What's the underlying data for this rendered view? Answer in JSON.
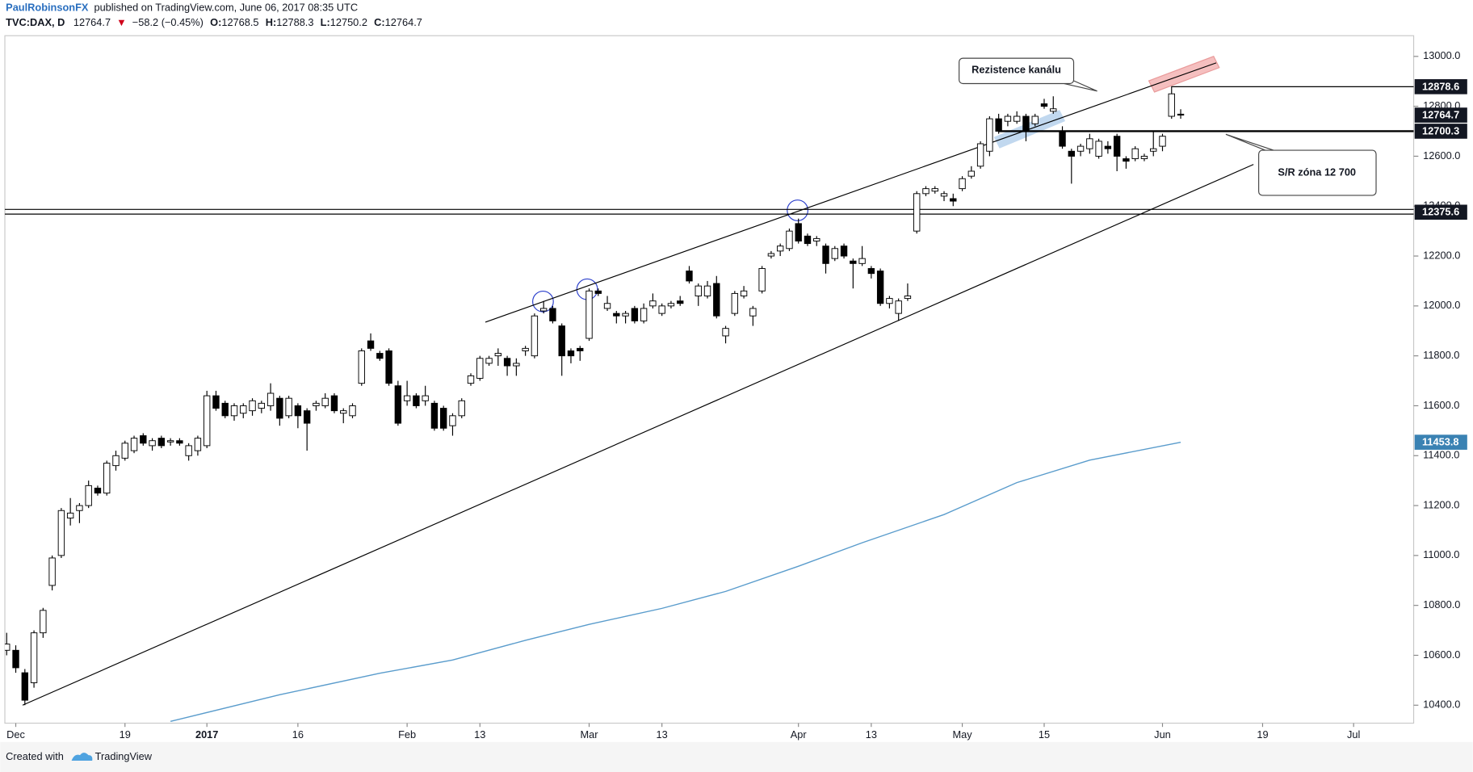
{
  "chart_data": {
    "type": "candlestick",
    "author": "PaulRobinsonFX",
    "published": "published on TradingView.com, June 06, 2017 08:35 UTC",
    "title": "TVC:DAX, D",
    "change_arrow": "▼",
    "change": "−58.2 (−0.45%)",
    "quote_labels": [
      "O:",
      "H:",
      "L:",
      "C:"
    ],
    "footer": "Created with",
    "footer_brand": "TradingView",
    "up_color": "#ffffff",
    "down_color": "#000000",
    "wick_color": "#000000",
    "ohlc": [
      [
        10620,
        10690,
        10600,
        10645
      ],
      [
        10620,
        10640,
        10530,
        10550
      ],
      [
        10530,
        10545,
        10400,
        10420
      ],
      [
        10490,
        10700,
        10470,
        10690
      ],
      [
        10690,
        10790,
        10670,
        10780
      ],
      [
        10880,
        11000,
        10860,
        10990
      ],
      [
        11000,
        11190,
        10990,
        11180
      ],
      [
        11150,
        11230,
        11120,
        11170
      ],
      [
        11180,
        11210,
        11130,
        11200
      ],
      [
        11200,
        11300,
        11190,
        11280
      ],
      [
        11270,
        11280,
        11240,
        11250
      ],
      [
        11250,
        11380,
        11240,
        11370
      ],
      [
        11360,
        11420,
        11340,
        11400
      ],
      [
        11390,
        11460,
        11380,
        11450
      ],
      [
        11420,
        11480,
        11410,
        11470
      ],
      [
        11480,
        11490,
        11440,
        11450
      ],
      [
        11440,
        11470,
        11420,
        11460
      ],
      [
        11470,
        11480,
        11430,
        11440
      ],
      [
        11455,
        11470,
        11440,
        11460
      ],
      [
        11460,
        11470,
        11440,
        11450
      ],
      [
        11400,
        11450,
        11380,
        11440
      ],
      [
        11420,
        11480,
        11400,
        11470
      ],
      [
        11440,
        11660,
        11430,
        11640
      ],
      [
        11640,
        11660,
        11580,
        11590
      ],
      [
        11610,
        11620,
        11550,
        11560
      ],
      [
        11560,
        11610,
        11540,
        11600
      ],
      [
        11570,
        11610,
        11550,
        11600
      ],
      [
        11580,
        11630,
        11560,
        11620
      ],
      [
        11590,
        11620,
        11570,
        11610
      ],
      [
        11600,
        11690,
        11580,
        11650
      ],
      [
        11630,
        11640,
        11520,
        11550
      ],
      [
        11560,
        11640,
        11550,
        11630
      ],
      [
        11600,
        11610,
        11510,
        11560
      ],
      [
        11580,
        11590,
        11420,
        11530
      ],
      [
        11600,
        11620,
        11580,
        11610
      ],
      [
        11600,
        11650,
        11590,
        11630
      ],
      [
        11640,
        11650,
        11570,
        11580
      ],
      [
        11570,
        11590,
        11530,
        11580
      ],
      [
        11560,
        11610,
        11550,
        11600
      ],
      [
        11690,
        11830,
        11680,
        11820
      ],
      [
        11860,
        11890,
        11820,
        11830
      ],
      [
        11810,
        11820,
        11780,
        11790
      ],
      [
        11820,
        11830,
        11680,
        11690
      ],
      [
        11680,
        11700,
        11520,
        11530
      ],
      [
        11620,
        11700,
        11600,
        11640
      ],
      [
        11640,
        11650,
        11590,
        11600
      ],
      [
        11620,
        11680,
        11600,
        11640
      ],
      [
        11610,
        11620,
        11500,
        11510
      ],
      [
        11590,
        11600,
        11500,
        11510
      ],
      [
        11520,
        11570,
        11480,
        11560
      ],
      [
        11560,
        11630,
        11550,
        11620
      ],
      [
        11690,
        11730,
        11680,
        11720
      ],
      [
        11710,
        11800,
        11700,
        11790
      ],
      [
        11770,
        11800,
        11760,
        11790
      ],
      [
        11800,
        11830,
        11760,
        11810
      ],
      [
        11790,
        11800,
        11720,
        11760
      ],
      [
        11760,
        11790,
        11720,
        11770
      ],
      [
        11820,
        11840,
        11800,
        11830
      ],
      [
        11800,
        11970,
        11790,
        11960
      ],
      [
        11980,
        12020,
        11970,
        11990
      ],
      [
        11990,
        12000,
        11930,
        11940
      ],
      [
        11920,
        11930,
        11720,
        11800
      ],
      [
        11820,
        11830,
        11770,
        11800
      ],
      [
        11830,
        11840,
        11780,
        11820
      ],
      [
        11870,
        12070,
        11860,
        12060
      ],
      [
        12060,
        12070,
        12040,
        12050
      ],
      [
        11990,
        12040,
        11980,
        12010
      ],
      [
        11970,
        11980,
        11930,
        11960
      ],
      [
        11960,
        11980,
        11930,
        11970
      ],
      [
        11990,
        12000,
        11930,
        11940
      ],
      [
        11940,
        12010,
        11930,
        11990
      ],
      [
        12000,
        12050,
        11990,
        12020
      ],
      [
        11970,
        12010,
        11960,
        12000
      ],
      [
        12000,
        12020,
        11990,
        12010
      ],
      [
        12020,
        12040,
        12000,
        12010
      ],
      [
        12140,
        12160,
        12090,
        12100
      ],
      [
        12040,
        12090,
        12000,
        12080
      ],
      [
        12040,
        12100,
        12030,
        12080
      ],
      [
        12090,
        12120,
        11950,
        11960
      ],
      [
        11880,
        11920,
        11850,
        11910
      ],
      [
        11970,
        12060,
        11960,
        12050
      ],
      [
        12040,
        12080,
        12030,
        12060
      ],
      [
        11960,
        12000,
        11920,
        11990
      ],
      [
        12060,
        12160,
        12050,
        12150
      ],
      [
        12200,
        12220,
        12190,
        12210
      ],
      [
        12220,
        12250,
        12200,
        12240
      ],
      [
        12230,
        12310,
        12220,
        12300
      ],
      [
        12330,
        12350,
        12250,
        12260
      ],
      [
        12280,
        12290,
        12240,
        12250
      ],
      [
        12260,
        12280,
        12240,
        12270
      ],
      [
        12240,
        12250,
        12130,
        12170
      ],
      [
        12190,
        12240,
        12180,
        12230
      ],
      [
        12240,
        12250,
        12190,
        12200
      ],
      [
        12180,
        12190,
        12070,
        12170
      ],
      [
        12170,
        12240,
        12160,
        12190
      ],
      [
        12150,
        12160,
        12110,
        12130
      ],
      [
        12140,
        12150,
        12000,
        12010
      ],
      [
        12010,
        12040,
        11990,
        12030
      ],
      [
        11970,
        12030,
        11940,
        12020
      ],
      [
        12030,
        12090,
        12020,
        12040
      ],
      [
        12300,
        12460,
        12290,
        12450
      ],
      [
        12450,
        12480,
        12440,
        12470
      ],
      [
        12460,
        12480,
        12450,
        12470
      ],
      [
        12440,
        12460,
        12420,
        12450
      ],
      [
        12430,
        12450,
        12400,
        12420
      ],
      [
        12470,
        12520,
        12460,
        12510
      ],
      [
        12520,
        12560,
        12510,
        12540
      ],
      [
        12560,
        12660,
        12550,
        12650
      ],
      [
        12620,
        12760,
        12600,
        12750
      ],
      [
        12750,
        12770,
        12690,
        12700
      ],
      [
        12740,
        12770,
        12720,
        12760
      ],
      [
        12740,
        12780,
        12730,
        12760
      ],
      [
        12760,
        12770,
        12660,
        12700
      ],
      [
        12730,
        12770,
        12720,
        12760
      ],
      [
        12810,
        12830,
        12790,
        12800
      ],
      [
        12780,
        12840,
        12770,
        12790
      ],
      [
        12700,
        12720,
        12630,
        12640
      ],
      [
        12620,
        12630,
        12490,
        12600
      ],
      [
        12620,
        12650,
        12600,
        12640
      ],
      [
        12630,
        12690,
        12610,
        12670
      ],
      [
        12600,
        12670,
        12590,
        12660
      ],
      [
        12640,
        12660,
        12610,
        12630
      ],
      [
        12680,
        12690,
        12540,
        12600
      ],
      [
        12590,
        12600,
        12550,
        12580
      ],
      [
        12590,
        12640,
        12580,
        12630
      ],
      [
        12590,
        12610,
        12580,
        12600
      ],
      [
        12620,
        12700,
        12600,
        12630
      ],
      [
        12640,
        12690,
        12620,
        12680
      ],
      [
        12760,
        12880,
        12750,
        12850
      ],
      [
        12768.5,
        12788.3,
        12750.2,
        12764.7
      ]
    ],
    "ma": {
      "color": "#5a9ccc",
      "x": [
        18,
        30,
        41,
        49,
        57,
        64,
        72,
        79,
        87,
        94,
        103,
        111,
        119,
        129
      ],
      "values": [
        10335,
        10442,
        10528,
        10581,
        10660,
        10724,
        10788,
        10856,
        10957,
        11051,
        11164,
        11292,
        11382,
        11453.8
      ]
    },
    "trendlines": [
      {
        "x": [
          52.6,
          132.9
        ],
        "y": [
          11935,
          12974
        ]
      },
      {
        "x": [
          1.75,
          137
        ],
        "y": [
          10400,
          12567
        ]
      }
    ],
    "levels": [
      {
        "value": 12878.6,
        "x0": 128,
        "style": "thin"
      },
      {
        "value": 12700.3,
        "x0": 109,
        "style": "thick"
      },
      {
        "value": 12375.6,
        "x0": -0.2,
        "style": "double"
      }
    ],
    "price_labels": [
      {
        "value": 12878.6,
        "color": "#131722"
      },
      {
        "value": 12764.7,
        "color": "#131722"
      },
      {
        "value": 12700.3,
        "color": "#131722"
      },
      {
        "value": 12375.6,
        "color": "#131722"
      },
      {
        "value": 11453.8,
        "color": "#3a82b3"
      }
    ],
    "annotations": [
      "Rezistence kanálu",
      "S/R zóna 12 700"
    ],
    "xlim": [
      -0.2,
      154.6
    ],
    "xticks": [
      {
        "value": 1,
        "label": "Dec"
      },
      {
        "value": 13,
        "label": "19"
      },
      {
        "value": 22,
        "label": "2017"
      },
      {
        "value": 32,
        "label": "16"
      },
      {
        "value": 44,
        "label": "Feb"
      },
      {
        "value": 52,
        "label": "13"
      },
      {
        "value": 64,
        "label": "Mar"
      },
      {
        "value": 72,
        "label": "13"
      },
      {
        "value": 87,
        "label": "Apr"
      },
      {
        "value": 95,
        "label": "13"
      },
      {
        "value": 105,
        "label": "May"
      },
      {
        "value": 114,
        "label": "15"
      },
      {
        "value": 127,
        "label": "Jun"
      },
      {
        "value": 138,
        "label": "19"
      },
      {
        "value": 148,
        "label": "Jul"
      }
    ],
    "ylim": [
      10328,
      13083
    ],
    "yticks": [
      {
        "value": 10400,
        "label": "10400.0"
      },
      {
        "value": 10600,
        "label": "10600.0"
      },
      {
        "value": 10800,
        "label": "10800.0"
      },
      {
        "value": 11000,
        "label": "11000.0"
      },
      {
        "value": 11200,
        "label": "11200.0"
      },
      {
        "value": 11400,
        "label": "11400.0"
      },
      {
        "value": 11600,
        "label": "11600.0"
      },
      {
        "value": 11800,
        "label": "11800.0"
      },
      {
        "value": 12000,
        "label": "12000.0"
      },
      {
        "value": 12200,
        "label": "12200.0"
      },
      {
        "value": 12400,
        "label": "12400.0"
      },
      {
        "value": 12600,
        "label": "12600.0"
      },
      {
        "value": 12800,
        "label": "12800.0"
      },
      {
        "value": 13000,
        "label": "13000.0"
      }
    ]
  }
}
